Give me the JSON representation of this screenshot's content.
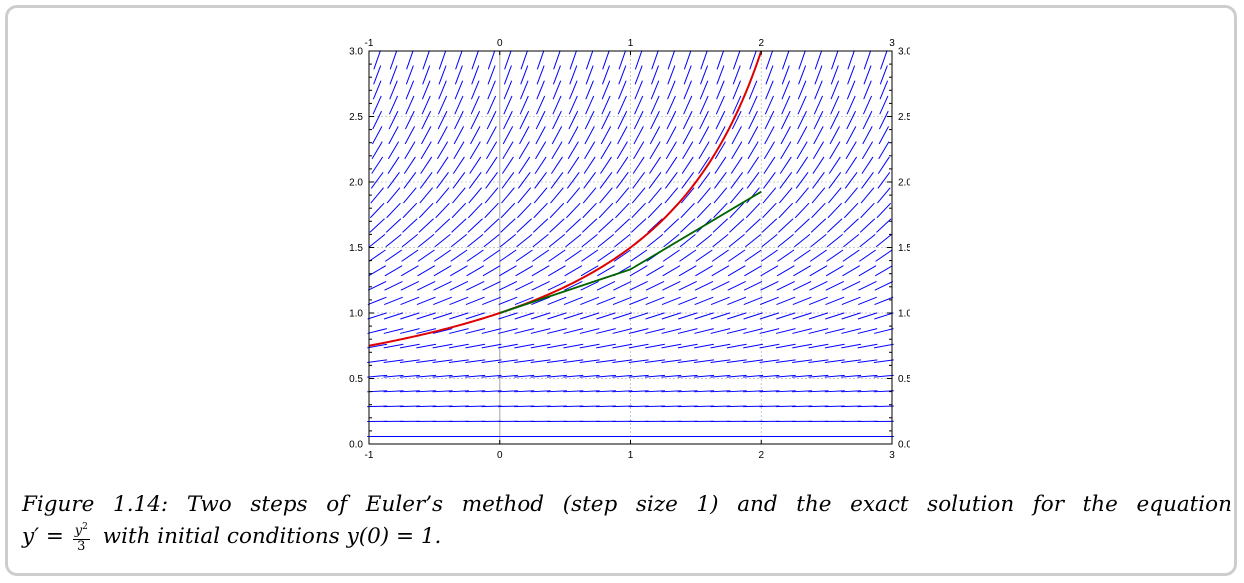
{
  "chart_data": {
    "type": "line",
    "title": "",
    "xlabel": "",
    "ylabel": "",
    "xlim": [
      -1,
      3
    ],
    "ylim": [
      0,
      3
    ],
    "x_ticks": [
      "-1",
      "0",
      "1",
      "2",
      "3"
    ],
    "y_ticks": [
      "0.0",
      "0.5",
      "1.0",
      "1.5",
      "2.0",
      "2.5",
      "3.0"
    ],
    "grid": true,
    "slope_field": {
      "equation": "y' = y^2/3",
      "x_step": 0.125,
      "y_step": 0.115,
      "color": "#0000ff"
    },
    "series": [
      {
        "color": "#e00000",
        "x": [
          -1,
          -0.75,
          -0.5,
          -0.25,
          0,
          0.25,
          0.5,
          0.75,
          1,
          1.25,
          1.5,
          1.75,
          2
        ],
        "y": [
          0.75,
          0.8,
          0.857,
          0.923,
          1.0,
          1.091,
          1.2,
          1.333,
          1.5,
          1.714,
          2.0,
          2.4,
          3.0
        ]
      },
      {
        "color": "#006400",
        "x": [
          0,
          1,
          2
        ],
        "y": [
          1.0,
          1.333,
          1.926
        ]
      }
    ]
  },
  "caption": {
    "label": "Figure 1.14:",
    "line1_text": "Two steps of Euler’s method (step size 1) and the exact solution for the equation",
    "lhs": "y′ =",
    "frac_num": "y",
    "frac_exp": "2",
    "frac_den": "3",
    "tail_text": "with initial conditions",
    "condition": "y(0) = 1."
  }
}
